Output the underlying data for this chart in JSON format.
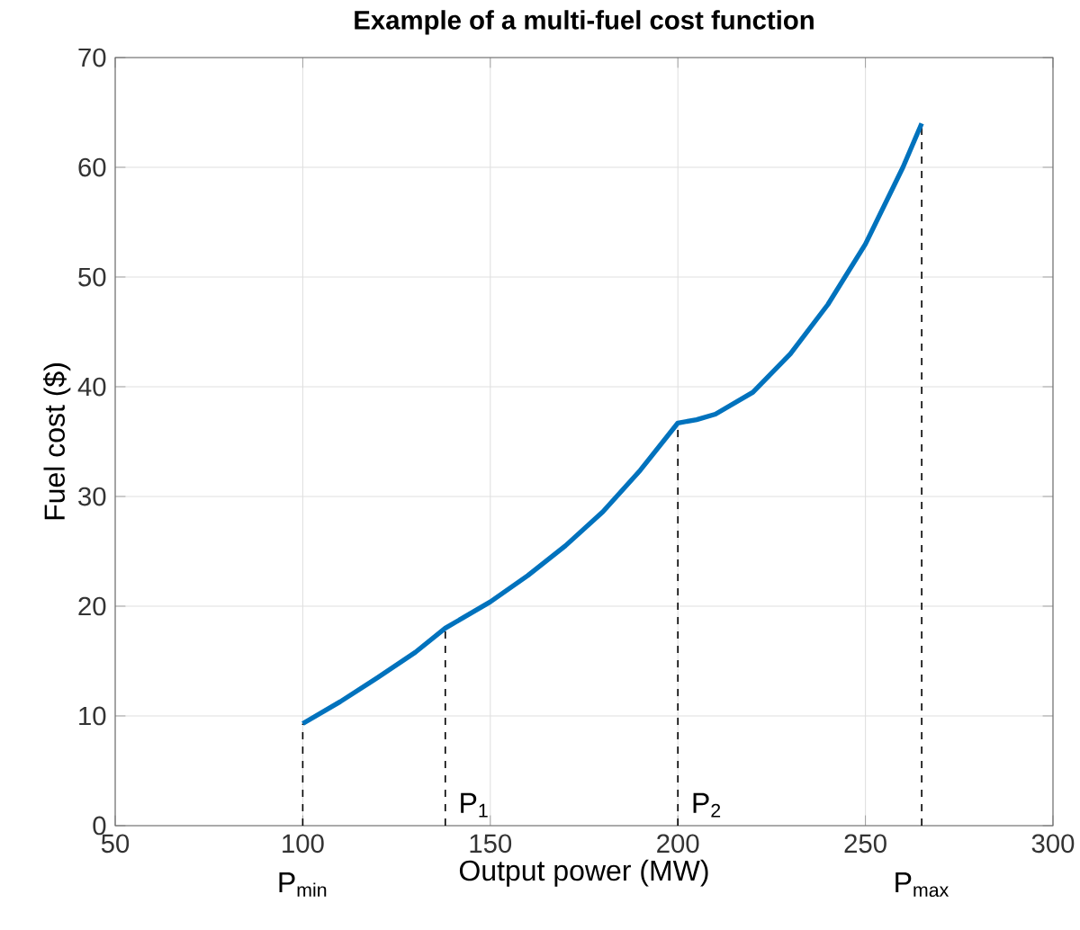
{
  "chart_data": {
    "type": "line",
    "title": "Example of a multi-fuel cost function",
    "xlabel": "Output power (MW)",
    "ylabel": "Fuel cost ($)",
    "series": [
      {
        "color": "#0072bd",
        "x": [
          100,
          110,
          120,
          130,
          138,
          150,
          160,
          170,
          180,
          190,
          200,
          205,
          210,
          220,
          230,
          240,
          250,
          260,
          265
        ],
        "values": [
          9.3,
          11.3,
          13.5,
          15.8,
          18,
          20.4,
          22.8,
          25.5,
          28.6,
          32.4,
          36.7,
          37,
          37.5,
          39.5,
          43,
          47.5,
          53,
          60,
          64
        ]
      }
    ],
    "xlim": [
      50,
      300
    ],
    "ylim": [
      0,
      70
    ],
    "xticks": [
      50,
      100,
      150,
      200,
      250,
      300
    ],
    "yticks": [
      0,
      10,
      20,
      30,
      40,
      50,
      60,
      70
    ],
    "grid": true,
    "marker": "none",
    "line_style": "solid",
    "ref_lines": [
      {
        "axis": "x",
        "value": 100,
        "label": "P$_{min}$",
        "line_style": "dashed",
        "color": "#000000"
      },
      {
        "axis": "x",
        "value": 138,
        "label": "P$_{1}$",
        "line_style": "dashed",
        "color": "#000000"
      },
      {
        "axis": "x",
        "value": 200,
        "label": "P$_{2}$",
        "line_style": "dashed",
        "color": "#000000"
      },
      {
        "axis": "x",
        "value": 265,
        "label": "P$_{max}$",
        "line_style": "dashed",
        "color": "#000000"
      }
    ]
  }
}
